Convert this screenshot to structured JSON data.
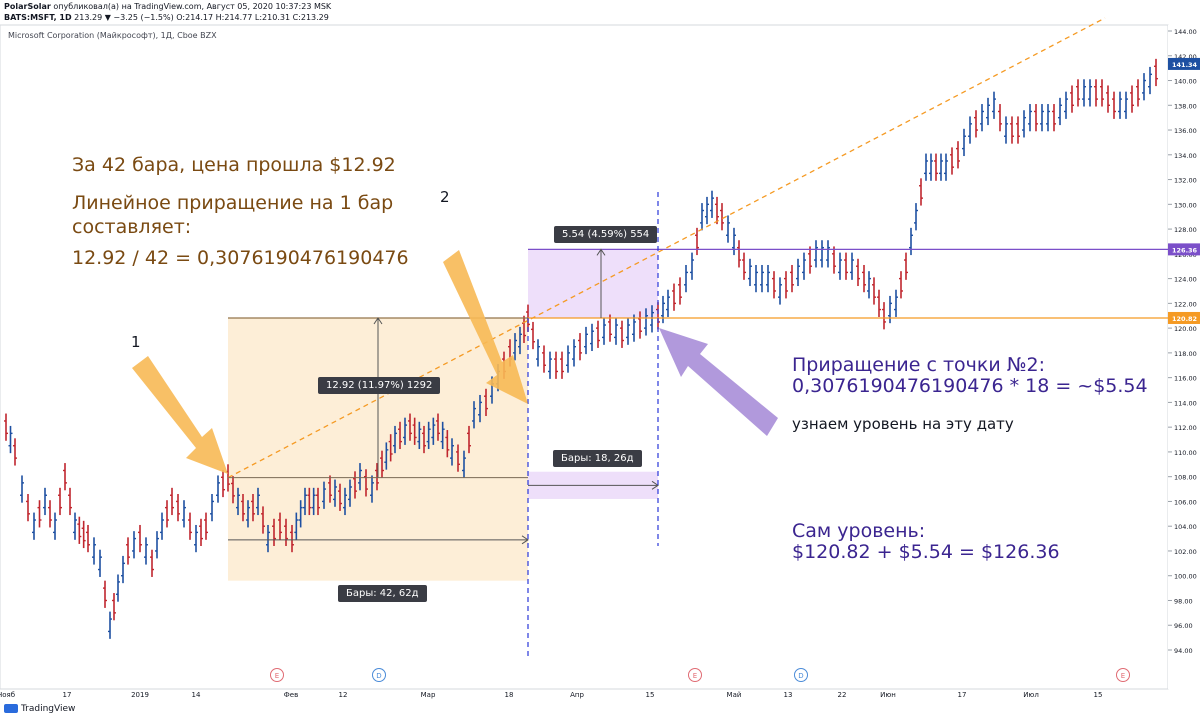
{
  "header": {
    "line1_author": "PolarSolar",
    "line1_rest": " опубликовал(а) на TradingView.com, Август 05, 2020 10:37:23 MSK",
    "line2_symbol": "BATS:MSFT, 1D",
    "line2_ohlc": " 213.29 ▼ −3.25 (−1.5%) O:214.17 H:214.77 L:210.31 C:213.29",
    "chart_title": "Microsoft Corporation (Майкрософт), 1Д, Cboe BZX"
  },
  "footer": {
    "brand": "TradingView"
  },
  "annotations": {
    "text1": "За 42 бара, цена прошла $12.92",
    "text2": "Линейное приращение на 1 бар\nсоставляет:",
    "text3": "12.92 / 42 = 0,3076190476190476",
    "point1": "1",
    "point2": "2",
    "level_note": "узнаем уровень на эту дату",
    "calc1": "Приращение с точки №2:\n0,3076190476190476 * 18 = ~$5.54",
    "calc2": "Сам уровень:\n$120.82 + $5.54 = $126.36",
    "measure1": "12.92 (11.97%) 1292",
    "bars1": "Бары: 42, 62д",
    "measure2": "5.54 (4.59%) 554",
    "bars2": "Бары: 18, 26д"
  },
  "colors": {
    "up": "#1e50a2",
    "down": "#c0262e",
    "trend": "#f59a23",
    "purple_line": "#7b4fc9",
    "orange_line": "#f59a23",
    "orange_zone": "#fdebd0",
    "purple_zone": "#ecdcf9",
    "arrow_orange": "#f7b955",
    "arrow_purple": "#a98ed8",
    "dash_blue": "#2a37d8"
  },
  "chart_data": {
    "type": "candlestick",
    "title": "Microsoft Corporation (Майкрософт), 1Д, Cboe BZX",
    "y_axis_ticks": [
      "144.00",
      "142.00",
      "140.00",
      "138.00",
      "136.00",
      "134.00",
      "132.00",
      "130.00",
      "128.00",
      "126.00",
      "124.00",
      "122.00",
      "120.00",
      "118.00",
      "116.00",
      "114.00",
      "112.00",
      "110.00",
      "108.00",
      "106.00",
      "104.00",
      "102.00",
      "100.00",
      "98.00",
      "96.00",
      "94.00"
    ],
    "ylim": [
      93,
      145
    ],
    "x_axis_ticks": [
      "Нояб",
      "17",
      "2019",
      "14",
      "Фев",
      "12",
      "Мар",
      "18",
      "Апр",
      "15",
      "Май",
      "13",
      "22",
      "Июн",
      "17",
      "Июл",
      "15"
    ],
    "price_labels": [
      {
        "value": 141.34,
        "label": "141.34",
        "color": "#1e50a2"
      },
      {
        "value": 126.36,
        "label": "126.36",
        "color": "#7b4fc9"
      },
      {
        "value": 120.82,
        "label": "120.82",
        "color": "#f59a23"
      }
    ],
    "event_markers": [
      "E",
      "D",
      "E",
      "D",
      "E"
    ],
    "key_points": [
      {
        "name": "point-1",
        "price": 107.92
      },
      {
        "name": "point-2",
        "price": 120.82
      },
      {
        "name": "target",
        "price": 126.36
      }
    ],
    "measure_1": {
      "price_change": 12.92,
      "percent": 11.97,
      "bars": 42,
      "days": 62
    },
    "measure_2": {
      "price_change": 5.54,
      "percent": 4.59,
      "bars": 18,
      "days": 26
    }
  }
}
